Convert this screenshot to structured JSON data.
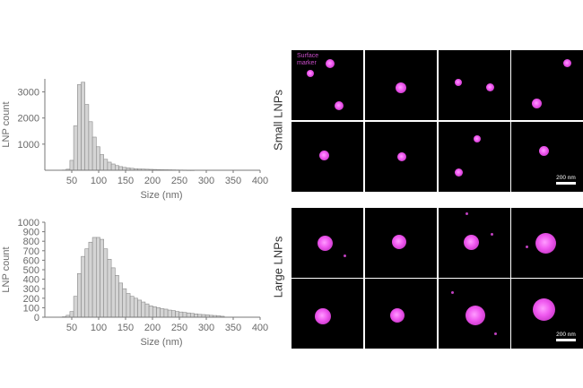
{
  "chart_data": [
    {
      "type": "bar",
      "xlabel": "Size (nm)",
      "ylabel": "LNP count",
      "xlim": [
        0,
        400
      ],
      "ylim": [
        0,
        3500
      ],
      "x_ticks": [
        50,
        100,
        150,
        200,
        250,
        300,
        350,
        400
      ],
      "y_ticks": [
        1000,
        2000,
        3000
      ],
      "bin_width": 7,
      "bin_centers": [
        36,
        43,
        50,
        57,
        64,
        71,
        78,
        85,
        92,
        99,
        106,
        113,
        120,
        127,
        134,
        141,
        148,
        155,
        162,
        169,
        176,
        183,
        190,
        197,
        204,
        211,
        218,
        225,
        232,
        239,
        246,
        253,
        260,
        267,
        274
      ],
      "values": [
        10,
        40,
        380,
        1700,
        3280,
        3370,
        2520,
        1860,
        1270,
        900,
        600,
        420,
        310,
        240,
        180,
        140,
        110,
        90,
        75,
        60,
        50,
        45,
        40,
        35,
        30,
        25,
        22,
        20,
        18,
        15,
        12,
        10,
        8,
        6,
        5
      ]
    },
    {
      "type": "bar",
      "xlabel": "Size (nm)",
      "ylabel": "LNP count",
      "xlim": [
        0,
        400
      ],
      "ylim": [
        0,
        1000
      ],
      "x_ticks": [
        50,
        100,
        150,
        200,
        250,
        300,
        350,
        400
      ],
      "y_ticks": [
        0,
        100,
        200,
        300,
        400,
        500,
        600,
        700,
        800,
        900,
        1000
      ],
      "bin_width": 7,
      "bin_centers": [
        36,
        43,
        50,
        57,
        64,
        71,
        78,
        85,
        92,
        99,
        106,
        113,
        120,
        127,
        134,
        141,
        148,
        155,
        162,
        169,
        176,
        183,
        190,
        197,
        204,
        211,
        218,
        225,
        232,
        239,
        246,
        253,
        260,
        267,
        274,
        281,
        288,
        295,
        302,
        309,
        316,
        323,
        330
      ],
      "values": [
        5,
        20,
        60,
        220,
        460,
        640,
        720,
        790,
        840,
        840,
        820,
        720,
        610,
        520,
        440,
        360,
        300,
        250,
        220,
        200,
        180,
        160,
        140,
        120,
        110,
        100,
        90,
        85,
        75,
        70,
        60,
        55,
        50,
        45,
        40,
        35,
        30,
        28,
        25,
        20,
        18,
        15,
        10
      ]
    }
  ],
  "micrographs": {
    "small_label": "Small LNPs",
    "large_label": "Large LNPs",
    "caption": "Surface\nmarker",
    "scale_text": "200 nm"
  },
  "colors": {
    "marker": "#f05af0",
    "tile_background": "#000000"
  }
}
